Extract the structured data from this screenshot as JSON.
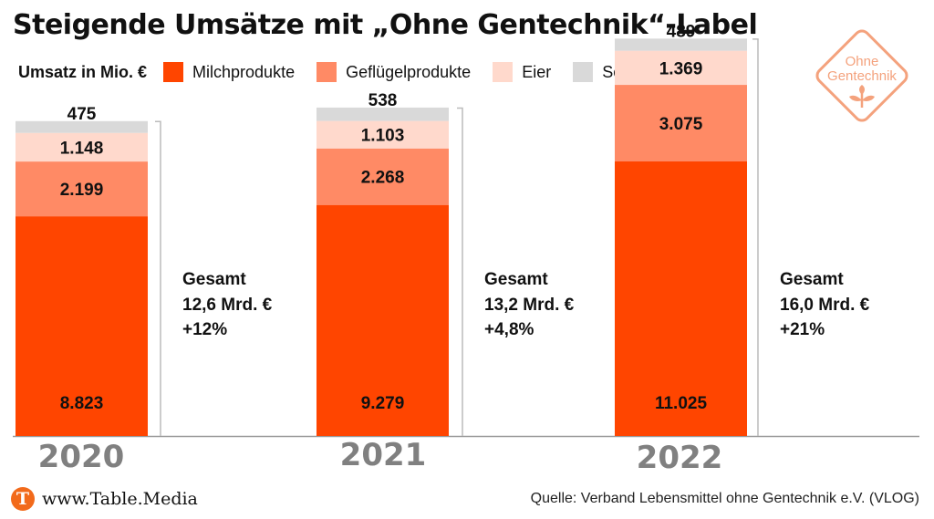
{
  "title": "Steigende Umsätze mit „Ohne Gentechnik“-Label",
  "logo": {
    "line1": "Ohne",
    "line2": "Gentechnik"
  },
  "legend": {
    "unit": "Umsatz in Mio. €",
    "items": [
      {
        "label": "Milchprodukte",
        "color": "#ff4500"
      },
      {
        "label": "Geflügelprodukte",
        "color": "#ff8a65"
      },
      {
        "label": "Eier",
        "color": "#ffd9cc"
      },
      {
        "label": "Sonstiges",
        "color": "#d9d9d9"
      }
    ]
  },
  "chart_data": {
    "type": "bar",
    "stacked": true,
    "categories": [
      "2020",
      "2021",
      "2022"
    ],
    "series": [
      {
        "name": "Milchprodukte",
        "values": [
          8823,
          9279,
          11025
        ],
        "labels": [
          "8.823",
          "9.279",
          "11.025"
        ]
      },
      {
        "name": "Geflügelprodukte",
        "values": [
          2199,
          2268,
          3075
        ],
        "labels": [
          "2.199",
          "2.268",
          "3.075"
        ]
      },
      {
        "name": "Eier",
        "values": [
          1148,
          1103,
          1369
        ],
        "labels": [
          "1.148",
          "1.103",
          "1.369"
        ]
      },
      {
        "name": "Sonstiges",
        "values": [
          475,
          538,
          489
        ],
        "labels": [
          "475",
          "538",
          "489"
        ]
      }
    ],
    "totals": [
      {
        "label": "Gesamt",
        "value": "12,6 Mrd. €",
        "change": "+12%"
      },
      {
        "label": "Gesamt",
        "value": "13,2 Mrd. €",
        "change": "+4,8%"
      },
      {
        "label": "Gesamt",
        "value": "16,0 Mrd. €",
        "change": "+21%"
      }
    ],
    "ylim": [
      0,
      17000
    ]
  },
  "footer": {
    "logo_letter": "T",
    "site": "www.Table.Media",
    "source": "Quelle: Verband Lebensmittel ohne Gentechnik e.V. (VLOG)"
  }
}
